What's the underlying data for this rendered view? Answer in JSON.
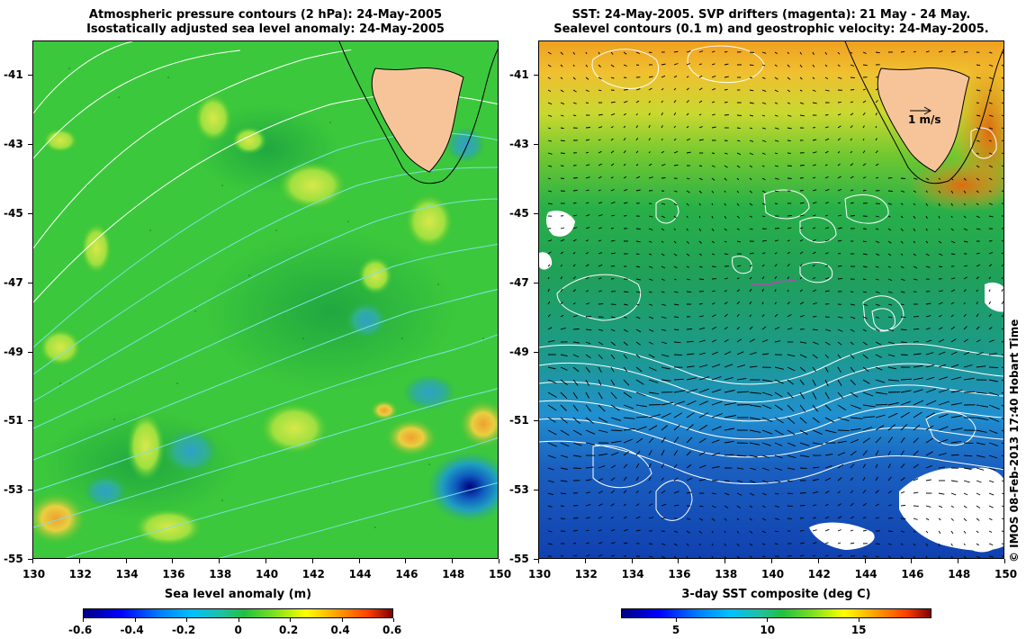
{
  "left_panel": {
    "title_line1": "Atmospheric pressure contours (2 hPa): 24-May-2005",
    "title_line2": "Isostatically adjusted sea level anomaly: 24-May-2005",
    "colorbar_title": "Sea level anomaly (m)",
    "colorbar_ticks": [
      "-0.6",
      "-0.4",
      "-0.2",
      "0",
      "0.2",
      "0.4",
      "0.6"
    ],
    "colorbar_values": [
      -0.6,
      -0.4,
      -0.2,
      0,
      0.2,
      0.4,
      0.6
    ]
  },
  "right_panel": {
    "title_line1": "SST: 24-May-2005. SVP drifters (magenta): 21 May - 24 May.",
    "title_line2": "Sealevel contours (0.1 m) and geostrophic velocity: 24-May-2005.",
    "velocity_scale_label": "1 m/s",
    "colorbar_title": "3-day SST composite (deg C)",
    "colorbar_ticks": [
      "5",
      "10",
      "15"
    ],
    "colorbar_values": [
      5,
      10,
      15
    ],
    "colorbar_range": [
      2,
      19
    ]
  },
  "axes": {
    "x_ticks": [
      "130",
      "132",
      "134",
      "136",
      "138",
      "140",
      "142",
      "144",
      "146",
      "148",
      "150"
    ],
    "x_values": [
      130,
      132,
      134,
      136,
      138,
      140,
      142,
      144,
      146,
      148,
      150
    ],
    "y_ticks": [
      "-41",
      "-43",
      "-45",
      "-47",
      "-49",
      "-51",
      "-53",
      "-55"
    ],
    "y_values": [
      -41,
      -43,
      -45,
      -47,
      -49,
      -51,
      -53,
      -55
    ],
    "lon_range": [
      130,
      150
    ],
    "lat_range": [
      -40,
      -55
    ]
  },
  "copyright": "© IMOS 08-Feb-2013 17:40 Hobart Time",
  "colors": {
    "land": "#f7c49a",
    "coastline": "#000000",
    "contour_white": "#ffffff",
    "contour_cyan": "#7fe0e0",
    "drifter": "#c040c0"
  }
}
